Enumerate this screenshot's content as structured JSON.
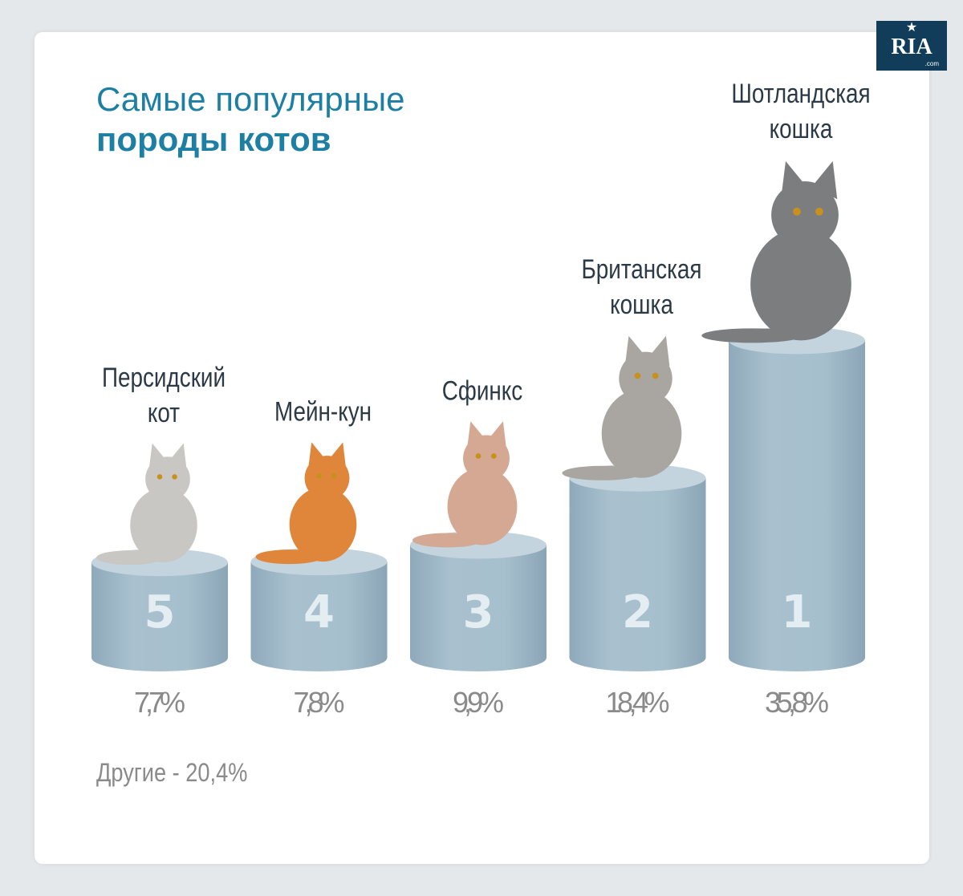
{
  "title_line1": "Самые популярные",
  "title_line2": "породы котов",
  "logo": {
    "text": "RIA",
    "domain": ".com"
  },
  "other_label": "Другие - 20,4%",
  "colors": {
    "title": "#1c7fa3",
    "cylinder": "#a3bccb",
    "rank_number": "#e3edf2",
    "percent_text": "#8a8a8a"
  },
  "chart_data": {
    "type": "bar",
    "categories": [
      "Персидский кот",
      "Мейн-кун",
      "Сфинкс",
      "Британская кошка",
      "Шотландская кошка"
    ],
    "label_lines": [
      [
        "Персидский",
        "кот"
      ],
      [
        "Мейн-кун"
      ],
      [
        "Сфинкс"
      ],
      [
        "Британская",
        "кошка"
      ],
      [
        "Шотландская",
        "кошка"
      ]
    ],
    "ranks": [
      "5",
      "4",
      "3",
      "2",
      "1"
    ],
    "values": [
      7.7,
      7.8,
      9.9,
      18.4,
      35.8
    ],
    "value_labels": [
      "7,7%",
      "7,8%",
      "9,9%",
      "18,4%",
      "35,8%"
    ],
    "unit": "%",
    "cat_colors": [
      "#c9c7c4",
      "#e0863a",
      "#d4a893",
      "#a9a6a1",
      "#7b7d7f"
    ]
  }
}
